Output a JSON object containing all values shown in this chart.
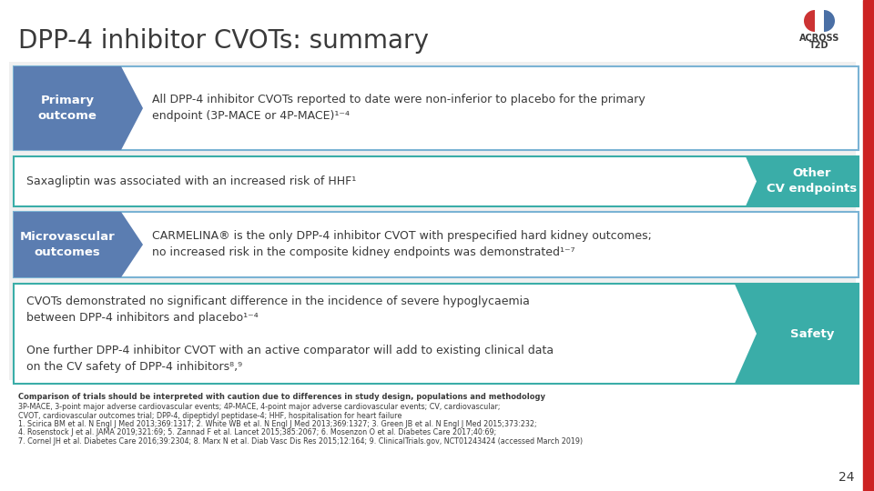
{
  "title": "DPP-4 inhibitor CVOTs: summary",
  "title_color": "#3a3a3a",
  "title_fontsize": 20,
  "bg_color": "#ffffff",
  "gray_bg": "#f0f0f0",
  "dark_blue": "#5b7db1",
  "teal": "#3aada8",
  "row_bg": "#ffffff",
  "row_border_blue": "#7ab3d4",
  "row_border_teal": "#3aada8",
  "red_accent": "#cc2222",
  "page_number": "24",
  "rows": [
    {
      "label": "Primary\noutcome",
      "label_bg": "#5b7db1",
      "border_color": "#7ab3d4",
      "text": "All DPP-4 inhibitor CVOTs reported to date were non-inferior to placebo for the primary\nendpoint (3P-MACE or 4P-MACE)¹⁻⁴",
      "tag": null,
      "tag_bg": null
    },
    {
      "label": null,
      "label_bg": null,
      "border_color": "#3aada8",
      "text": "Saxagliptin was associated with an increased risk of HHF¹",
      "tag": "Other\nCV endpoints",
      "tag_bg": "#3aada8"
    },
    {
      "label": "Microvascular\noutcomes",
      "label_bg": "#5b7db1",
      "border_color": "#7ab3d4",
      "text": "CARMELINA® is the only DPP-4 inhibitor CVOT with prespecified hard kidney outcomes;\nno increased risk in the composite kidney endpoints was demonstrated¹⁻⁷",
      "tag": null,
      "tag_bg": null
    },
    {
      "label": null,
      "label_bg": null,
      "border_color": "#3aada8",
      "text": "CVOTs demonstrated no significant difference in the incidence of severe hypoglycaemia\nbetween DPP-4 inhibitors and placebo¹⁻⁴\n\nOne further DPP-4 inhibitor CVOT with an active comparator will add to existing clinical data\non the CV safety of DPP-4 inhibitors⁸,⁹",
      "tag": "Safety",
      "tag_bg": "#3aada8"
    }
  ],
  "footnote_bold": "Comparison of trials should be interpreted with caution due to differences in study design, populations and methodology",
  "footnote_lines": [
    "3P-MACE, 3-point major adverse cardiovascular events; 4P-MACE, 4-point major adverse cardiovascular events; CV, cardiovascular;",
    "CVOT, cardiovascular outcomes trial; DPP-4, dipeptidyl peptidase-4; HHF, hospitalisation for heart failure",
    "1. Scirica BM et al. N Engl J Med 2013;369:1317; 2. White WB et al. N Engl J Med 2013;369:1327; 3. Green JB et al. N Engl J Med 2015;373:232;",
    "4. Rosenstock J et al. JAMA 2019;321:69; 5. Zannad F et al. Lancet 2015;385:2067; 6. Mosenzon O et al. Diabetes Care 2017;40:69;",
    "7. Cornel JH et al. Diabetes Care 2016;39:2304; 8. Marx N et al. Diab Vasc Dis Res 2015;12:164; 9. ClinicalTrials.gov, NCT01243424 (accessed March 2019)"
  ]
}
